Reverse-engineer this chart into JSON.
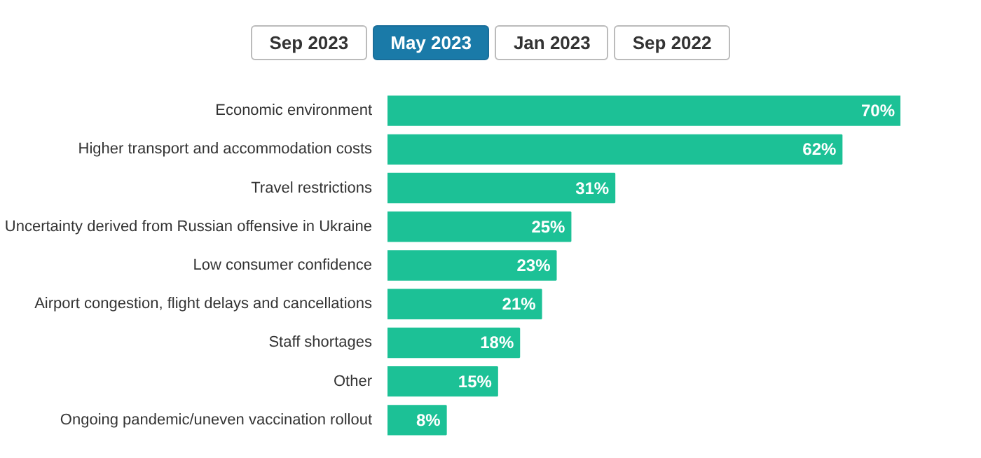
{
  "chart_data": {
    "type": "bar",
    "orientation": "horizontal",
    "annotations": [
      "Sep 2023",
      "May 2023",
      "Jan 2023",
      "Sep 2022"
    ],
    "categories": [
      "Economic environment",
      "Higher transport and accommodation costs",
      "Travel restrictions",
      "Uncertainty derived from Russian offensive in Ukraine",
      "Low consumer confidence",
      "Airport congestion, flight delays and cancellations",
      "Staff shortages",
      "Other",
      "Ongoing pandemic/uneven vaccination rollout"
    ],
    "values": [
      70,
      62,
      31,
      25,
      23,
      21,
      18,
      15,
      8
    ],
    "value_labels": [
      "70%",
      "62%",
      "31%",
      "25%",
      "23%",
      "21%",
      "18%",
      "15%",
      "8%"
    ],
    "color": "#1cc196",
    "grid": false
  }
}
